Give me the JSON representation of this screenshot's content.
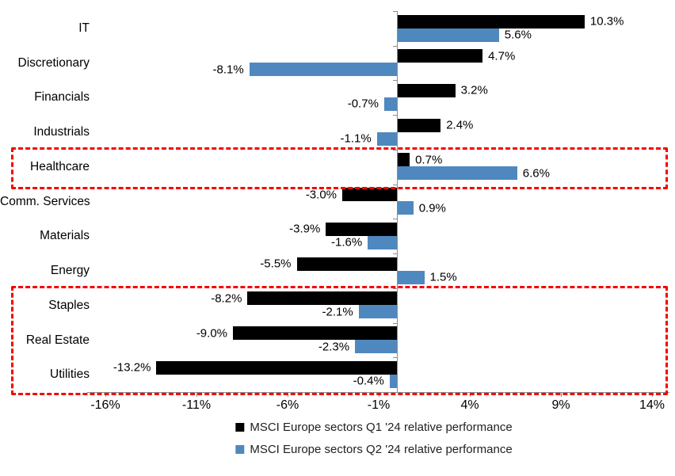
{
  "chart_data": {
    "type": "bar",
    "orientation": "horizontal",
    "title": "",
    "categories": [
      "IT",
      "Discretionary",
      "Financials",
      "Industrials",
      "Healthcare",
      "Comm. Services",
      "Materials",
      "Energy",
      "Staples",
      "Real Estate",
      "Utilities"
    ],
    "series": [
      {
        "name": "MSCI Europe sectors Q1 '24 relative performance",
        "color": "#000000",
        "values": [
          10.3,
          4.7,
          3.2,
          2.4,
          0.7,
          -3.0,
          -3.9,
          -5.5,
          -8.2,
          -9.0,
          -13.2
        ],
        "value_labels": [
          "10.3%",
          "4.7%",
          "3.2%",
          "2.4%",
          "0.7%",
          "-3.0%",
          "-3.9%",
          "-5.5%",
          "-8.2%",
          "-9.0%",
          "-13.2%"
        ]
      },
      {
        "name": "MSCI Europe sectors Q2 '24 relative performance",
        "color": "#4F88BE",
        "values": [
          5.6,
          -8.1,
          -0.7,
          -1.1,
          6.6,
          0.9,
          -1.6,
          1.5,
          -2.1,
          -2.3,
          -0.4
        ],
        "value_labels": [
          "5.6%",
          "-8.1%",
          "-0.7%",
          "-1.1%",
          "6.6%",
          "0.9%",
          "-1.6%",
          "1.5%",
          "-2.1%",
          "-2.3%",
          "-0.4%"
        ]
      }
    ],
    "x_tick_labels": [
      "-16%",
      "-11%",
      "-6%",
      "-1%",
      "4%",
      "9%",
      "14%"
    ],
    "x_tick_values": [
      -16,
      -11,
      -6,
      -1,
      4,
      9,
      14
    ],
    "xlim": [
      -17,
      15
    ],
    "grid": false,
    "legend_position": "bottom-center",
    "axis_color": "#8C8C8C",
    "highlight_color": "#F80000",
    "highlight_boxes": [
      {
        "name": "healthcare-highlight",
        "categories": [
          "Healthcare"
        ]
      },
      {
        "name": "defensives-highlight",
        "categories": [
          "Staples",
          "Real Estate",
          "Utilities"
        ]
      }
    ]
  }
}
